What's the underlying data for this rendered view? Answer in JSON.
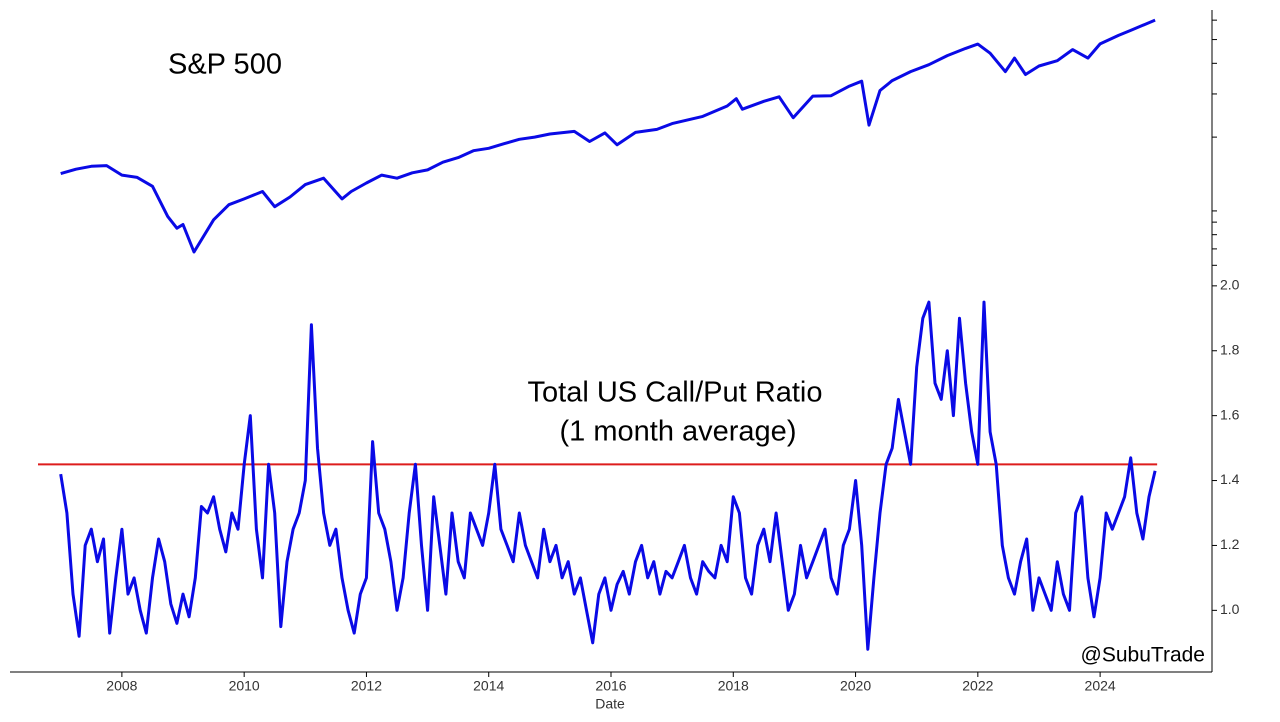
{
  "chart_data": [
    {
      "type": "line",
      "title": "S&P 500",
      "log": true,
      "color": "#0a0ae6",
      "xlim": [
        2006.17,
        2025.83
      ],
      "ylim": [
        585,
        6600
      ],
      "yticks": [
        600,
        700,
        800,
        900,
        1000,
        2000,
        3000,
        4000,
        5000,
        6000
      ],
      "x": [
        2007.0,
        2007.25,
        2007.5,
        2007.75,
        2008.0,
        2008.25,
        2008.5,
        2008.75,
        2008.9,
        2009.0,
        2009.18,
        2009.5,
        2009.75,
        2010.0,
        2010.3,
        2010.5,
        2010.75,
        2011.0,
        2011.3,
        2011.6,
        2011.75,
        2012.0,
        2012.25,
        2012.5,
        2012.75,
        2013.0,
        2013.25,
        2013.5,
        2013.75,
        2014.0,
        2014.25,
        2014.5,
        2014.75,
        2015.0,
        2015.4,
        2015.65,
        2015.9,
        2016.1,
        2016.4,
        2016.75,
        2017.0,
        2017.5,
        2017.9,
        2018.05,
        2018.15,
        2018.5,
        2018.75,
        2018.98,
        2019.3,
        2019.6,
        2019.9,
        2020.1,
        2020.22,
        2020.4,
        2020.6,
        2020.9,
        2021.2,
        2021.5,
        2021.8,
        2022.0,
        2022.2,
        2022.45,
        2022.6,
        2022.78,
        2023.0,
        2023.3,
        2023.55,
        2023.8,
        2024.0,
        2024.3,
        2024.5,
        2024.9
      ],
      "values": [
        1420,
        1480,
        1520,
        1530,
        1400,
        1370,
        1260,
        950,
        850,
        880,
        680,
        920,
        1060,
        1120,
        1200,
        1040,
        1140,
        1280,
        1360,
        1120,
        1200,
        1300,
        1400,
        1360,
        1430,
        1470,
        1580,
        1650,
        1760,
        1800,
        1880,
        1960,
        2000,
        2060,
        2110,
        1920,
        2080,
        1860,
        2090,
        2150,
        2270,
        2430,
        2680,
        2870,
        2600,
        2800,
        2920,
        2400,
        2940,
        2950,
        3230,
        3380,
        2240,
        3100,
        3400,
        3700,
        3950,
        4300,
        4600,
        4790,
        4400,
        3700,
        4200,
        3600,
        3900,
        4100,
        4550,
        4200,
        4800,
        5200,
        5450,
        6000
      ]
    },
    {
      "type": "line",
      "title": [
        "Total US Call/Put Ratio",
        "(1 month average)"
      ],
      "color": "#0a0ae6",
      "xlabel": "Date",
      "annotation": "@SubuTrade",
      "hline": {
        "value": 1.45,
        "color": "#dd1c1c"
      },
      "xlim": [
        2006.17,
        2025.83
      ],
      "ylim": [
        0.81,
        2.055
      ],
      "xticks": [
        2008,
        2010,
        2012,
        2014,
        2016,
        2018,
        2020,
        2022,
        2024
      ],
      "yticks": [
        {
          "value": 1.0,
          "label": "1.0"
        },
        1.2,
        1.4,
        1.6,
        1.8,
        {
          "value": 2.0,
          "label": "2.0"
        }
      ],
      "x_start": 2007.0,
      "x_step": 0.1,
      "values": [
        1.42,
        1.3,
        1.05,
        0.92,
        1.2,
        1.25,
        1.15,
        1.22,
        0.93,
        1.1,
        1.25,
        1.05,
        1.1,
        1.0,
        0.93,
        1.1,
        1.22,
        1.15,
        1.02,
        0.96,
        1.05,
        0.98,
        1.1,
        1.32,
        1.3,
        1.35,
        1.25,
        1.18,
        1.3,
        1.25,
        1.45,
        1.6,
        1.25,
        1.1,
        1.45,
        1.3,
        0.95,
        1.15,
        1.25,
        1.3,
        1.4,
        1.88,
        1.5,
        1.3,
        1.2,
        1.25,
        1.1,
        1.0,
        0.93,
        1.05,
        1.1,
        1.52,
        1.3,
        1.25,
        1.15,
        1.0,
        1.1,
        1.3,
        1.45,
        1.2,
        1.0,
        1.35,
        1.2,
        1.05,
        1.3,
        1.15,
        1.1,
        1.3,
        1.25,
        1.2,
        1.3,
        1.45,
        1.25,
        1.2,
        1.15,
        1.3,
        1.2,
        1.15,
        1.1,
        1.25,
        1.15,
        1.2,
        1.1,
        1.15,
        1.05,
        1.1,
        1.0,
        0.9,
        1.05,
        1.1,
        1.0,
        1.08,
        1.12,
        1.05,
        1.15,
        1.2,
        1.1,
        1.15,
        1.05,
        1.12,
        1.1,
        1.15,
        1.2,
        1.1,
        1.05,
        1.15,
        1.12,
        1.1,
        1.2,
        1.15,
        1.35,
        1.3,
        1.1,
        1.05,
        1.2,
        1.25,
        1.15,
        1.3,
        1.15,
        1.0,
        1.05,
        1.2,
        1.1,
        1.15,
        1.2,
        1.25,
        1.1,
        1.05,
        1.2,
        1.25,
        1.4,
        1.2,
        0.88,
        1.1,
        1.3,
        1.45,
        1.5,
        1.65,
        1.55,
        1.45,
        1.75,
        1.9,
        1.95,
        1.7,
        1.65,
        1.8,
        1.6,
        1.9,
        1.7,
        1.55,
        1.45,
        1.95,
        1.55,
        1.45,
        1.2,
        1.1,
        1.05,
        1.15,
        1.22,
        1.0,
        1.1,
        1.05,
        1.0,
        1.15,
        1.05,
        1.0,
        1.3,
        1.35,
        1.1,
        0.98,
        1.1,
        1.3,
        1.25,
        1.3,
        1.35,
        1.47,
        1.3,
        1.22,
        1.35,
        1.43
      ]
    }
  ]
}
